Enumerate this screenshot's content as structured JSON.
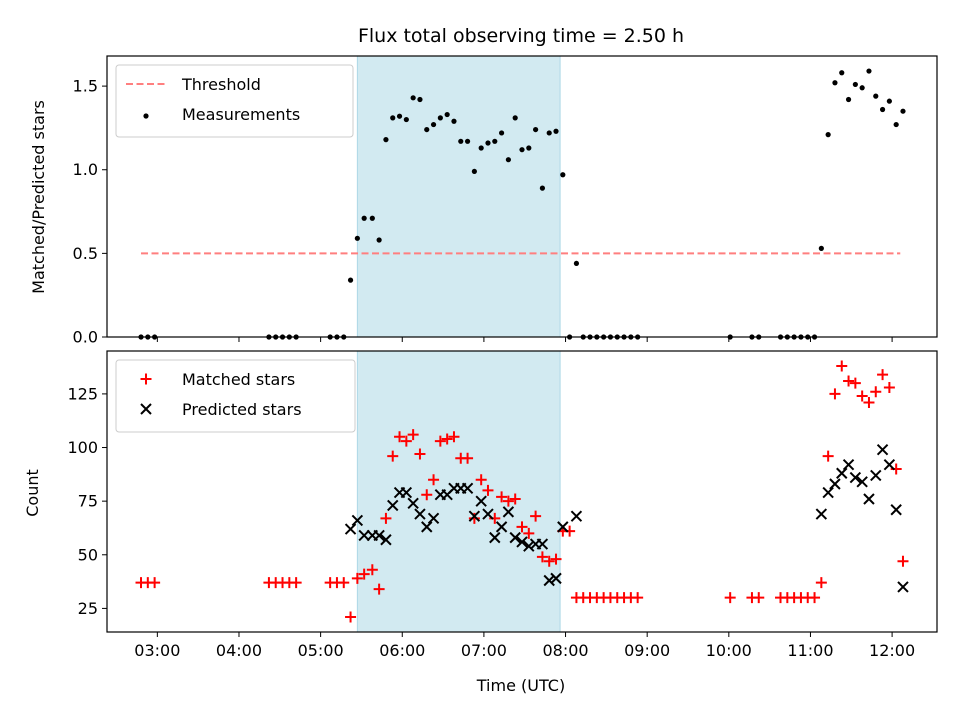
{
  "chart_data": [
    {
      "type": "scatter",
      "title": "Flux total observing time = 2.50 h",
      "xlabel": "",
      "ylabel": "Matched/Predicted stars",
      "xlim": [
        "02:23",
        "12:33"
      ],
      "ylim": [
        0,
        1.68
      ],
      "x_ticks": [
        "03:00",
        "04:00",
        "05:00",
        "06:00",
        "07:00",
        "08:00",
        "09:00",
        "10:00",
        "11:00",
        "12:00"
      ],
      "y_ticks": [
        0.0,
        0.5,
        1.0,
        1.5
      ],
      "y_tick_labels": [
        "0.0",
        "0.5",
        "1.0",
        "1.5"
      ],
      "legend_position": "top-left",
      "shaded_interval": [
        "05:27",
        "07:56"
      ],
      "shade_color": "#add8e6",
      "threshold": {
        "name": "Threshold",
        "value": 0.5,
        "x_range": [
          "02:48",
          "12:06"
        ],
        "color": "#ff7f7f",
        "style": "dashed"
      },
      "series": [
        {
          "name": "Measurements",
          "marker": "dot",
          "color": "#000000",
          "points": [
            [
              "02:48",
              0
            ],
            [
              "02:53",
              0
            ],
            [
              "02:58",
              0
            ],
            [
              "04:22",
              0
            ],
            [
              "04:27",
              0
            ],
            [
              "04:32",
              0
            ],
            [
              "04:37",
              0
            ],
            [
              "04:42",
              0
            ],
            [
              "05:07",
              0
            ],
            [
              "05:12",
              0
            ],
            [
              "05:17",
              0
            ],
            [
              "05:22",
              0.34
            ],
            [
              "05:27",
              0.59
            ],
            [
              "05:32",
              0.71
            ],
            [
              "05:38",
              0.71
            ],
            [
              "05:43",
              0.58
            ],
            [
              "05:48",
              1.18
            ],
            [
              "05:53",
              1.31
            ],
            [
              "05:58",
              1.32
            ],
            [
              "06:03",
              1.3
            ],
            [
              "06:08",
              1.43
            ],
            [
              "06:13",
              1.42
            ],
            [
              "06:18",
              1.24
            ],
            [
              "06:23",
              1.27
            ],
            [
              "06:28",
              1.31
            ],
            [
              "06:33",
              1.33
            ],
            [
              "06:38",
              1.29
            ],
            [
              "06:43",
              1.17
            ],
            [
              "06:48",
              1.17
            ],
            [
              "06:53",
              0.99
            ],
            [
              "06:58",
              1.13
            ],
            [
              "07:03",
              1.16
            ],
            [
              "07:08",
              1.17
            ],
            [
              "07:13",
              1.22
            ],
            [
              "07:18",
              1.06
            ],
            [
              "07:23",
              1.31
            ],
            [
              "07:28",
              1.12
            ],
            [
              "07:33",
              1.13
            ],
            [
              "07:38",
              1.24
            ],
            [
              "07:43",
              0.89
            ],
            [
              "07:48",
              1.22
            ],
            [
              "07:53",
              1.23
            ],
            [
              "07:58",
              0.97
            ],
            [
              "08:03",
              0
            ],
            [
              "08:08",
              0.44
            ],
            [
              "08:13",
              0
            ],
            [
              "08:18",
              0
            ],
            [
              "08:23",
              0
            ],
            [
              "08:28",
              0
            ],
            [
              "08:33",
              0
            ],
            [
              "08:38",
              0
            ],
            [
              "08:43",
              0
            ],
            [
              "08:48",
              0
            ],
            [
              "08:53",
              0
            ],
            [
              "10:01",
              0
            ],
            [
              "10:17",
              0
            ],
            [
              "10:22",
              0
            ],
            [
              "10:38",
              0
            ],
            [
              "10:43",
              0
            ],
            [
              "10:48",
              0
            ],
            [
              "10:53",
              0
            ],
            [
              "10:58",
              0
            ],
            [
              "11:03",
              0
            ],
            [
              "11:08",
              0.53
            ],
            [
              "11:13",
              1.21
            ],
            [
              "11:18",
              1.52
            ],
            [
              "11:23",
              1.58
            ],
            [
              "11:28",
              1.42
            ],
            [
              "11:33",
              1.51
            ],
            [
              "11:38",
              1.49
            ],
            [
              "11:43",
              1.59
            ],
            [
              "11:48",
              1.44
            ],
            [
              "11:53",
              1.36
            ],
            [
              "11:58",
              1.41
            ],
            [
              "12:03",
              1.27
            ],
            [
              "12:08",
              1.35
            ]
          ]
        }
      ]
    },
    {
      "type": "scatter",
      "title": "",
      "xlabel": "Time (UTC)",
      "ylabel": "Count",
      "xlim": [
        "02:23",
        "12:33"
      ],
      "ylim": [
        14,
        145
      ],
      "x_ticks": [
        "03:00",
        "04:00",
        "05:00",
        "06:00",
        "07:00",
        "08:00",
        "09:00",
        "10:00",
        "11:00",
        "12:00"
      ],
      "y_ticks": [
        25,
        50,
        75,
        100,
        125
      ],
      "legend_position": "top-left",
      "shaded_interval": [
        "05:27",
        "07:56"
      ],
      "shade_color": "#add8e6",
      "series": [
        {
          "name": "Matched stars",
          "marker": "plus",
          "color": "#ff0000",
          "points": [
            [
              "02:48",
              37
            ],
            [
              "02:53",
              37
            ],
            [
              "02:58",
              37
            ],
            [
              "04:22",
              37
            ],
            [
              "04:27",
              37
            ],
            [
              "04:32",
              37
            ],
            [
              "04:37",
              37
            ],
            [
              "04:42",
              37
            ],
            [
              "05:07",
              37
            ],
            [
              "05:12",
              37
            ],
            [
              "05:17",
              37
            ],
            [
              "05:22",
              21
            ],
            [
              "05:27",
              39
            ],
            [
              "05:32",
              41
            ],
            [
              "05:38",
              43
            ],
            [
              "05:43",
              34
            ],
            [
              "05:48",
              67
            ],
            [
              "05:53",
              96
            ],
            [
              "05:58",
              105
            ],
            [
              "06:03",
              103
            ],
            [
              "06:08",
              106
            ],
            [
              "06:13",
              97
            ],
            [
              "06:18",
              78
            ],
            [
              "06:23",
              85
            ],
            [
              "06:28",
              103
            ],
            [
              "06:33",
              104
            ],
            [
              "06:38",
              105
            ],
            [
              "06:43",
              95
            ],
            [
              "06:48",
              95
            ],
            [
              "06:53",
              67
            ],
            [
              "06:58",
              85
            ],
            [
              "07:03",
              80
            ],
            [
              "07:08",
              67
            ],
            [
              "07:13",
              77
            ],
            [
              "07:18",
              75
            ],
            [
              "07:23",
              76
            ],
            [
              "07:28",
              63
            ],
            [
              "07:33",
              60
            ],
            [
              "07:38",
              68
            ],
            [
              "07:43",
              49
            ],
            [
              "07:48",
              47
            ],
            [
              "07:53",
              48
            ],
            [
              "07:58",
              61
            ],
            [
              "08:03",
              61
            ],
            [
              "08:08",
              30
            ],
            [
              "08:13",
              30
            ],
            [
              "08:18",
              30
            ],
            [
              "08:23",
              30
            ],
            [
              "08:28",
              30
            ],
            [
              "08:33",
              30
            ],
            [
              "08:38",
              30
            ],
            [
              "08:43",
              30
            ],
            [
              "08:48",
              30
            ],
            [
              "08:53",
              30
            ],
            [
              "10:01",
              30
            ],
            [
              "10:17",
              30
            ],
            [
              "10:22",
              30
            ],
            [
              "10:38",
              30
            ],
            [
              "10:43",
              30
            ],
            [
              "10:48",
              30
            ],
            [
              "10:53",
              30
            ],
            [
              "10:58",
              30
            ],
            [
              "11:03",
              30
            ],
            [
              "11:08",
              37
            ],
            [
              "11:13",
              96
            ],
            [
              "11:18",
              125
            ],
            [
              "11:23",
              138
            ],
            [
              "11:28",
              131
            ],
            [
              "11:33",
              130
            ],
            [
              "11:38",
              124
            ],
            [
              "11:43",
              121
            ],
            [
              "11:48",
              126
            ],
            [
              "11:53",
              134
            ],
            [
              "11:58",
              128
            ],
            [
              "12:03",
              90
            ],
            [
              "12:08",
              47
            ]
          ]
        },
        {
          "name": "Predicted stars",
          "marker": "x",
          "color": "#000000",
          "points": [
            [
              "05:22",
              62
            ],
            [
              "05:27",
              66
            ],
            [
              "05:32",
              59
            ],
            [
              "05:38",
              59
            ],
            [
              "05:43",
              59
            ],
            [
              "05:48",
              57
            ],
            [
              "05:53",
              73
            ],
            [
              "05:58",
              79
            ],
            [
              "06:03",
              79
            ],
            [
              "06:08",
              74
            ],
            [
              "06:13",
              69
            ],
            [
              "06:18",
              63
            ],
            [
              "06:23",
              67
            ],
            [
              "06:28",
              78
            ],
            [
              "06:33",
              78
            ],
            [
              "06:38",
              81
            ],
            [
              "06:43",
              81
            ],
            [
              "06:48",
              81
            ],
            [
              "06:53",
              68
            ],
            [
              "06:58",
              75
            ],
            [
              "07:03",
              69
            ],
            [
              "07:08",
              58
            ],
            [
              "07:13",
              63
            ],
            [
              "07:18",
              70
            ],
            [
              "07:23",
              58
            ],
            [
              "07:28",
              56
            ],
            [
              "07:33",
              54
            ],
            [
              "07:38",
              55
            ],
            [
              "07:43",
              55
            ],
            [
              "07:48",
              38
            ],
            [
              "07:53",
              39
            ],
            [
              "07:58",
              63
            ],
            [
              "08:08",
              68
            ],
            [
              "11:08",
              69
            ],
            [
              "11:13",
              79
            ],
            [
              "11:18",
              83
            ],
            [
              "11:23",
              88
            ],
            [
              "11:28",
              92
            ],
            [
              "11:33",
              86
            ],
            [
              "11:38",
              84
            ],
            [
              "11:43",
              76
            ],
            [
              "11:48",
              87
            ],
            [
              "11:53",
              99
            ],
            [
              "11:58",
              92
            ],
            [
              "12:03",
              71
            ],
            [
              "12:08",
              35
            ]
          ]
        }
      ]
    }
  ]
}
